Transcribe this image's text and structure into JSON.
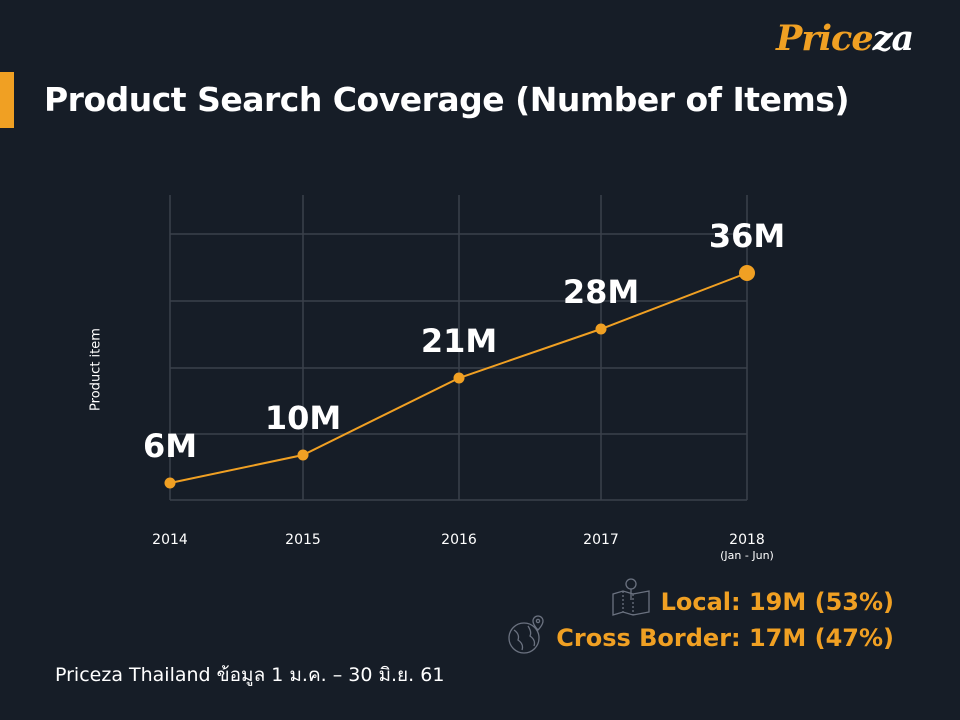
{
  "header": {
    "title": "Product Search Coverage (Number of Items)",
    "logo_part1": "Price",
    "logo_part2": "za"
  },
  "colors": {
    "accent": "#f0a023",
    "background": "#161d27",
    "grid": "#3a414b"
  },
  "chart_data": {
    "type": "line",
    "categories": [
      "2014",
      "2015",
      "2016",
      "2017",
      "2018"
    ],
    "category_sublabels": [
      "",
      "",
      "",
      "",
      "(Jan - Jun)"
    ],
    "values": [
      6,
      10,
      21,
      28,
      36
    ],
    "data_labels": [
      "6M",
      "10M",
      "21M",
      "28M",
      "36M"
    ],
    "ylabel": "Product item",
    "xlabel": "",
    "grid": true,
    "y_ticks_shown": false
  },
  "legend": {
    "local": {
      "label": "Local: 19M (53%)",
      "icon": "map-pin-icon"
    },
    "cross_border": {
      "label": "Cross Border: 17M (47%)",
      "icon": "globe-pin-icon"
    }
  },
  "footer": {
    "text": "Priceza Thailand ข้อมูล 1 ม.ค. – 30 มิ.ย. 61"
  }
}
